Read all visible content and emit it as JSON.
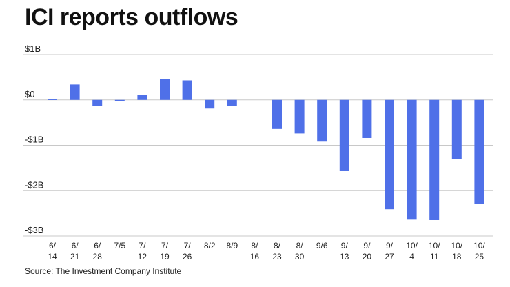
{
  "title": "ICI reports outflows",
  "source": "Source: The Investment Company Institute",
  "chart_data": {
    "type": "bar",
    "title": "ICI reports outflows",
    "xlabel": "",
    "ylabel": "",
    "ylim": [
      -3,
      1
    ],
    "yticks": [
      {
        "value": 1,
        "label": "$1B"
      },
      {
        "value": 0,
        "label": "$0"
      },
      {
        "value": -1,
        "label": "-$1B"
      },
      {
        "value": -2,
        "label": "-$2B"
      },
      {
        "value": -3,
        "label": "-$3B"
      }
    ],
    "categories": [
      [
        "6/",
        "14"
      ],
      [
        "6/",
        "21"
      ],
      [
        "6/",
        "28"
      ],
      [
        "7/5",
        ""
      ],
      [
        "7/",
        "12"
      ],
      [
        "7/",
        "19"
      ],
      [
        "7/",
        "26"
      ],
      [
        "8/2",
        ""
      ],
      [
        "8/9",
        ""
      ],
      [
        "8/",
        "16"
      ],
      [
        "8/",
        "23"
      ],
      [
        "8/",
        "30"
      ],
      [
        "9/6",
        ""
      ],
      [
        "9/",
        "13"
      ],
      [
        "9/",
        "20"
      ],
      [
        "9/",
        "27"
      ],
      [
        "10/",
        "4"
      ],
      [
        "10/",
        "11"
      ],
      [
        "10/",
        "18"
      ],
      [
        "10/",
        "25"
      ]
    ],
    "values": [
      0.02,
      0.34,
      -0.14,
      -0.02,
      0.11,
      0.46,
      0.43,
      -0.19,
      -0.14,
      null,
      -0.64,
      -0.74,
      -0.92,
      -1.57,
      -0.84,
      -2.41,
      -2.64,
      -2.65,
      -1.3,
      -2.29
    ],
    "grid": true,
    "bar_color": "#4f70e8",
    "grid_color": "#c8c8c8"
  }
}
